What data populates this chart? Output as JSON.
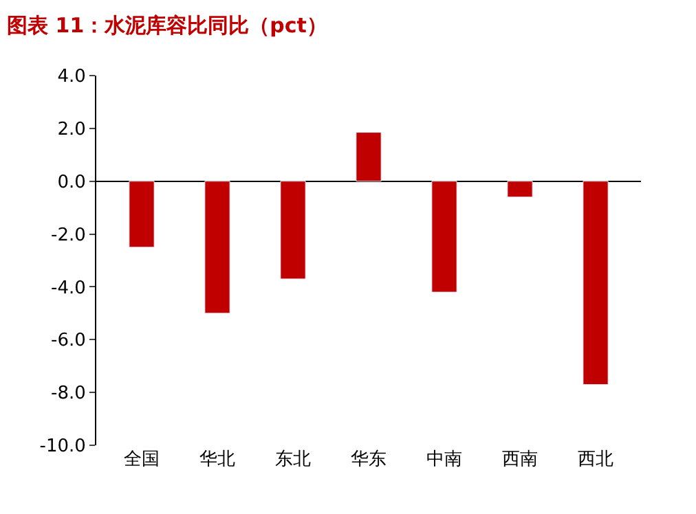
{
  "chart_data": {
    "type": "bar",
    "title": "图表 11：水泥库容比同比（pct）",
    "categories": [
      "全国",
      "华北",
      "东北",
      "华东",
      "中南",
      "西南",
      "西北"
    ],
    "values": [
      -2.5,
      -5.0,
      -3.7,
      1.85,
      -4.2,
      -0.6,
      -7.7
    ],
    "color": "#c00000",
    "ylim": [
      -10,
      4
    ],
    "yticks": [
      {
        "value": -10,
        "label": "-10.0"
      },
      {
        "value": -8,
        "label": "-8.0"
      },
      {
        "value": -6,
        "label": "-6.0"
      },
      {
        "value": -4,
        "label": "-4.0"
      },
      {
        "value": -2,
        "label": "-2.0"
      },
      {
        "value": 0,
        "label": "0.0"
      },
      {
        "value": 2,
        "label": "2.0"
      },
      {
        "value": 4,
        "label": "4.0"
      }
    ]
  }
}
